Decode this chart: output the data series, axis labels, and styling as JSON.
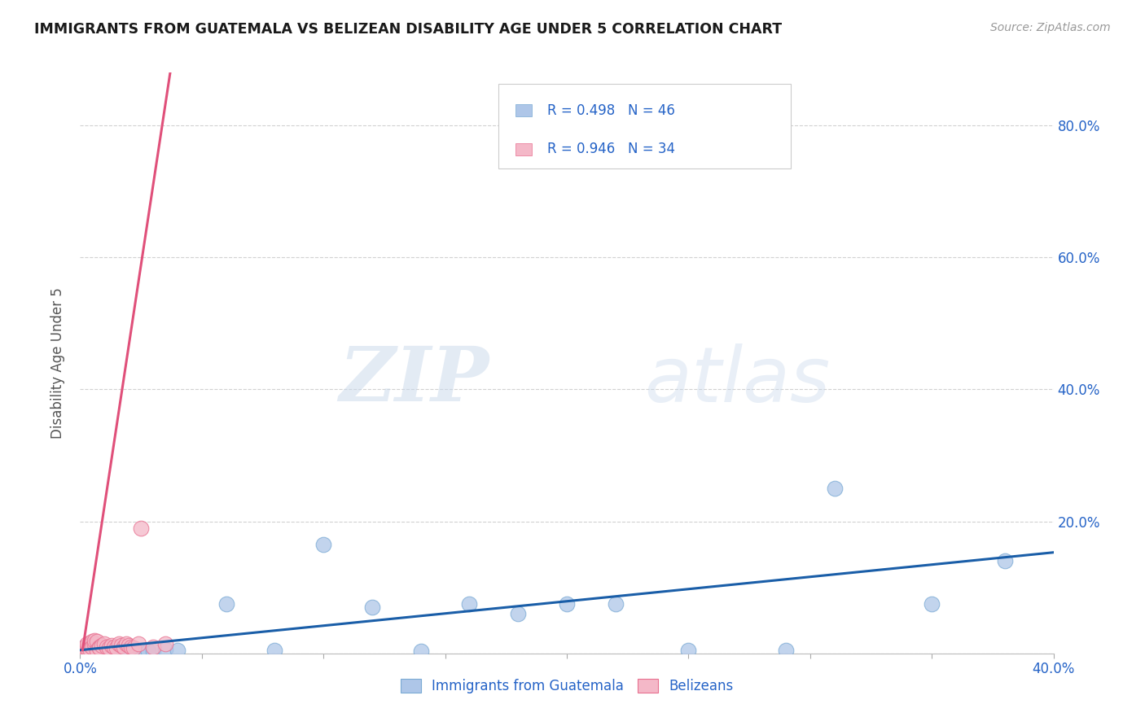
{
  "title": "IMMIGRANTS FROM GUATEMALA VS BELIZEAN DISABILITY AGE UNDER 5 CORRELATION CHART",
  "source": "Source: ZipAtlas.com",
  "ylabel": "Disability Age Under 5",
  "xlim": [
    0.0,
    0.4
  ],
  "ylim": [
    0.0,
    0.88
  ],
  "xticks": [
    0.0,
    0.05,
    0.1,
    0.15,
    0.2,
    0.25,
    0.3,
    0.35,
    0.4
  ],
  "yticks": [
    0.0,
    0.2,
    0.4,
    0.6,
    0.8
  ],
  "xticklabels": [
    "0.0%",
    "",
    "",
    "",
    "",
    "",
    "",
    "",
    "40.0%"
  ],
  "yticklabels": [
    "",
    "20.0%",
    "40.0%",
    "60.0%",
    "80.0%"
  ],
  "blue_R": 0.498,
  "blue_N": 46,
  "pink_R": 0.946,
  "pink_N": 34,
  "blue_scatter_x": [
    0.001,
    0.002,
    0.001,
    0.003,
    0.002,
    0.001,
    0.003,
    0.004,
    0.002,
    0.003,
    0.004,
    0.005,
    0.003,
    0.004,
    0.005,
    0.006,
    0.004,
    0.005,
    0.007,
    0.006,
    0.008,
    0.01,
    0.012,
    0.015,
    0.018,
    0.02,
    0.022,
    0.025,
    0.028,
    0.03,
    0.035,
    0.04,
    0.06,
    0.08,
    0.1,
    0.12,
    0.14,
    0.16,
    0.18,
    0.2,
    0.22,
    0.25,
    0.29,
    0.31,
    0.35,
    0.38
  ],
  "blue_scatter_y": [
    0.003,
    0.005,
    0.008,
    0.004,
    0.006,
    0.007,
    0.005,
    0.003,
    0.006,
    0.004,
    0.007,
    0.005,
    0.003,
    0.006,
    0.004,
    0.005,
    0.007,
    0.003,
    0.005,
    0.004,
    0.006,
    0.004,
    0.003,
    0.005,
    0.004,
    0.006,
    0.007,
    0.005,
    0.003,
    0.004,
    0.006,
    0.005,
    0.075,
    0.005,
    0.165,
    0.07,
    0.004,
    0.075,
    0.06,
    0.075,
    0.075,
    0.005,
    0.005,
    0.25,
    0.075,
    0.14
  ],
  "pink_scatter_x": [
    0.001,
    0.001,
    0.002,
    0.002,
    0.003,
    0.003,
    0.004,
    0.004,
    0.005,
    0.005,
    0.006,
    0.006,
    0.007,
    0.007,
    0.008,
    0.008,
    0.009,
    0.01,
    0.011,
    0.012,
    0.013,
    0.014,
    0.015,
    0.016,
    0.017,
    0.018,
    0.019,
    0.02,
    0.021,
    0.022,
    0.024,
    0.025,
    0.03,
    0.035
  ],
  "pink_scatter_y": [
    0.003,
    0.006,
    0.005,
    0.01,
    0.008,
    0.015,
    0.012,
    0.007,
    0.018,
    0.01,
    0.015,
    0.02,
    0.018,
    0.005,
    0.01,
    0.008,
    0.012,
    0.015,
    0.01,
    0.008,
    0.012,
    0.01,
    0.008,
    0.015,
    0.012,
    0.01,
    0.015,
    0.012,
    0.01,
    0.008,
    0.015,
    0.19,
    0.01,
    0.015
  ],
  "pink_line_slope": 25.0,
  "pink_line_intercept": -0.02,
  "pink_line_x_start": 0.001,
  "pink_line_x_end": 0.037,
  "blue_line_slope": 0.37,
  "blue_line_intercept": 0.005,
  "blue_color": "#aec6e8",
  "blue_edge_color": "#7aaad4",
  "blue_line_color": "#1a5ea8",
  "pink_color": "#f4b8c8",
  "pink_edge_color": "#e87090",
  "pink_line_color": "#e0507a",
  "legend_color": "#2563c7",
  "watermark_zip": "ZIP",
  "watermark_atlas": "atlas",
  "background_color": "#ffffff",
  "grid_color": "#cccccc"
}
